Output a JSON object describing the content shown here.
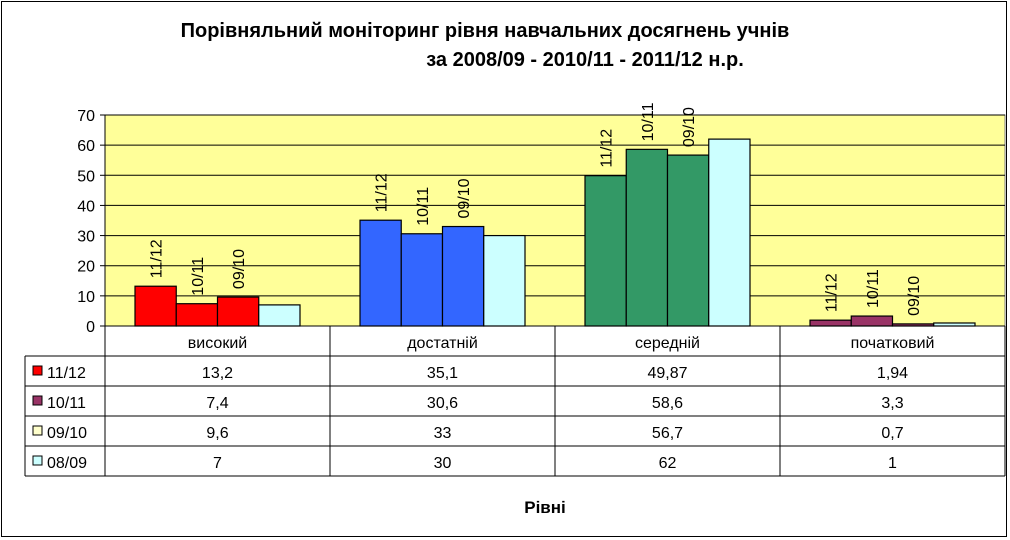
{
  "chart_data": {
    "type": "bar",
    "title": "Порівняльний  моніторинг рівня навчальних досягнень учнів",
    "subtitle": "за 2008/09 - 2010/11 - 2011/12 н.р.",
    "xlabel": "Рівні",
    "ylabel": "",
    "ylim": [
      0,
      70
    ],
    "yticks": [
      0,
      10,
      20,
      30,
      40,
      50,
      60,
      70
    ],
    "grid": true,
    "legend": "data-table-left",
    "categories": [
      "високий",
      "достатній",
      "середній",
      "початковий"
    ],
    "series": [
      {
        "name": "11/12",
        "color": "#ff0000",
        "values": [
          13.2,
          35.1,
          49.87,
          1.94
        ],
        "labels": [
          "13,2",
          "35,1",
          "49,87",
          "1,94"
        ]
      },
      {
        "name": "10/11",
        "color": "#993366",
        "values": [
          7.4,
          30.6,
          58.6,
          3.3
        ],
        "labels": [
          "7,4",
          "30,6",
          "58,6",
          "3,3"
        ]
      },
      {
        "name": "09/10",
        "color": "#ffffcc",
        "values": [
          9.6,
          33,
          56.7,
          0.7
        ],
        "labels": [
          "9,6",
          "33",
          "56,7",
          "0,7"
        ]
      },
      {
        "name": "08/09",
        "color": "#ccffff",
        "values": [
          7,
          30,
          62,
          1
        ],
        "labels": [
          "7",
          "30",
          "62",
          "1"
        ]
      }
    ],
    "bar_colors_by_category": [
      "#ff0000",
      "#3366ff",
      "#339966",
      "#993366"
    ],
    "bar_colors_last_series": "#ccffff",
    "bar_annotations": [
      "11/12",
      "10/11",
      "09/10"
    ],
    "plot_background": "#ffff99"
  }
}
